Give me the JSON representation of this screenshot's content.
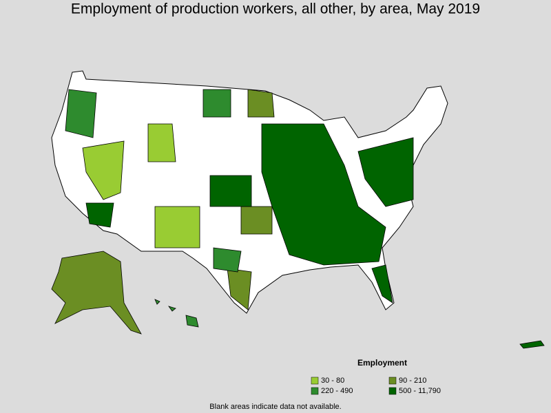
{
  "title": "Employment of production workers, all other, by area, May 2019",
  "legend": {
    "title": "Employment",
    "items": [
      {
        "label": "30 - 80",
        "color": "#99cc33"
      },
      {
        "label": "90 - 210",
        "color": "#6b8e23"
      },
      {
        "label": "220 - 490",
        "color": "#2e8b2e"
      },
      {
        "label": "500 - 11,790",
        "color": "#006400"
      }
    ]
  },
  "footnote": "Blank areas indicate data not available."
}
